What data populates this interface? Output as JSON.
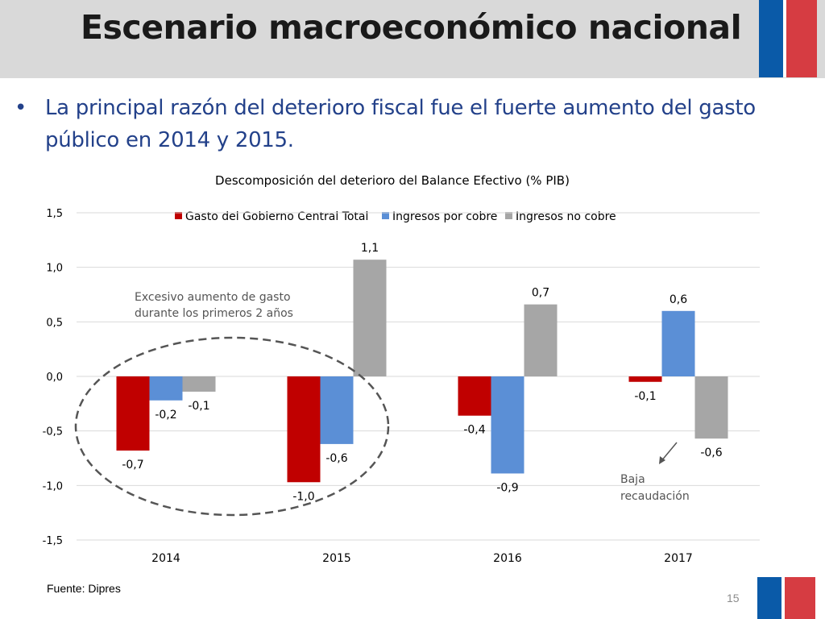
{
  "slide": {
    "title": "Escenario macroeconómico nacional",
    "bullet": "La principal razón del deterioro fiscal fue el fuerte aumento del gasto público en 2014 y 2015.",
    "source": "Fuente: Dipres",
    "page_number": "15",
    "colors": {
      "title_bar": "#d9d9d9",
      "flag_blue": "#0a5aa8",
      "flag_red": "#d63c42",
      "bullet_text": "#23418a"
    }
  },
  "chart_data": {
    "type": "bar",
    "title": "Descomposición del deterioro del Balance Efectivo (% PIB)",
    "categories": [
      "2014",
      "2015",
      "2016",
      "2017"
    ],
    "series": [
      {
        "name": "Gasto del Gobierno Central Total",
        "color": "#c00000",
        "values": [
          -0.7,
          -1.0,
          -0.4,
          -0.1
        ],
        "display_values": [
          -0.68,
          -0.97,
          -0.36,
          -0.05
        ],
        "labels": [
          "-0,7",
          "-1,0",
          "-0,4",
          "-0,1"
        ]
      },
      {
        "name": "Ingresos por cobre",
        "color": "#5b8fd6",
        "values": [
          -0.2,
          -0.6,
          -0.9,
          0.6
        ],
        "display_values": [
          -0.22,
          -0.62,
          -0.89,
          0.6
        ],
        "labels": [
          "-0,2",
          "-0,6",
          "-0,9",
          "0,6"
        ]
      },
      {
        "name": "Ingresos no cobre",
        "color": "#a6a6a6",
        "values": [
          -0.1,
          1.1,
          0.7,
          -0.6
        ],
        "display_values": [
          -0.14,
          1.07,
          0.66,
          -0.57
        ],
        "labels": [
          "-0,1",
          "1,1",
          "0,7",
          "-0,6"
        ]
      }
    ],
    "ylim": [
      -1.5,
      1.5
    ],
    "yticks": [
      1.5,
      1.0,
      0.5,
      0.0,
      -0.5,
      -1.0,
      -1.5
    ],
    "ytick_labels": [
      "1,5",
      "1,0",
      "0,5",
      "0,0",
      "-0,5",
      "-1,0",
      "-1,5"
    ],
    "grid": true,
    "legend_position": "top",
    "annotations": {
      "ellipse_text_line1": "Excesivo aumento de gasto",
      "ellipse_text_line2": "durante los primeros 2 años",
      "arrow_text_line1": "Baja",
      "arrow_text_line2": "recaudación"
    }
  }
}
